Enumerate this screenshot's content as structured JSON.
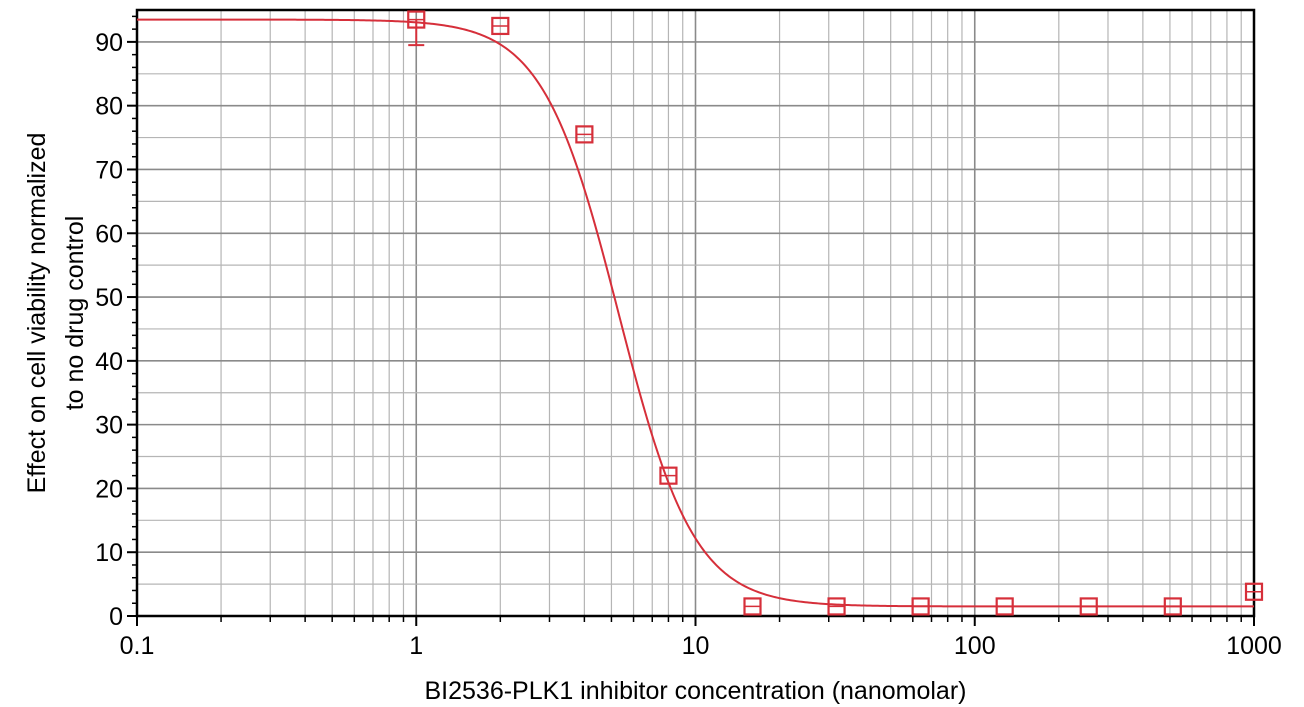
{
  "chart_data": {
    "type": "scatter",
    "title": "",
    "xlabel": "BI2536-PLK1 inhibitor concentration (nanomolar)",
    "ylabel_lines": [
      "Effect on cell viability normalized",
      "to no drug control"
    ],
    "xscale": "log",
    "xlim": [
      0.1,
      1000
    ],
    "ylim": [
      0,
      95
    ],
    "x_ticks": [
      0.1,
      1,
      10,
      100,
      1000
    ],
    "x_tick_labels": [
      "0.1",
      "1",
      "10",
      "100",
      "1000"
    ],
    "y_ticks": [
      0,
      10,
      20,
      30,
      40,
      50,
      60,
      70,
      80,
      90
    ],
    "y_tick_labels": [
      "0",
      "10",
      "20",
      "30",
      "40",
      "50",
      "60",
      "70",
      "80",
      "90"
    ],
    "grid": true,
    "color": "#d62f3a",
    "series": [
      {
        "marker": "square",
        "x": [
          1,
          2,
          4,
          8,
          16,
          32,
          64,
          128,
          256,
          512,
          1000
        ],
        "y": [
          93.5,
          92.5,
          75.5,
          22,
          1.5,
          1.5,
          1.5,
          1.5,
          1.5,
          1.5,
          3.8
        ],
        "error_low": [
          4,
          0,
          0,
          0,
          0,
          0,
          0,
          0,
          0,
          0,
          0
        ],
        "error_high": [
          0,
          0,
          0,
          0,
          0,
          0,
          0,
          0,
          0,
          0,
          0
        ]
      }
    ],
    "fit_curve": {
      "model": "four-parameter logistic",
      "top": 93.5,
      "bottom": 1.5,
      "ec50": 5.3,
      "hill": 3.2
    }
  }
}
